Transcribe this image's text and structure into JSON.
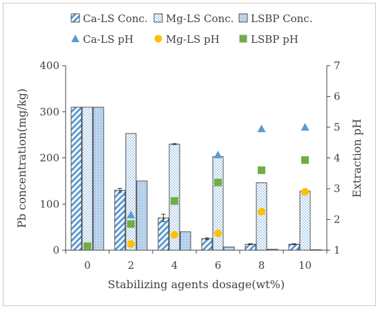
{
  "chart_data": {
    "type": "bar",
    "xlabel": "Stabilizing agents dosage(wt%)",
    "ylabel": "Pb concentration(mg/kg)",
    "y2label": "Extraction pH",
    "categories": [
      "0",
      "2",
      "4",
      "6",
      "8",
      "10"
    ],
    "ylim": [
      0,
      400
    ],
    "yticks": [
      "0",
      "100",
      "200",
      "300",
      "400"
    ],
    "y2lim": [
      1,
      7
    ],
    "y2ticks": [
      "1",
      "2",
      "3",
      "4",
      "5",
      "6",
      "7"
    ],
    "grid": false,
    "legend": "top",
    "bar_series": [
      {
        "name": "Ca-LS Conc.",
        "values": [
          310,
          130,
          70,
          25,
          13,
          13
        ],
        "errors": [
          0,
          4,
          8,
          2,
          1,
          1
        ],
        "pattern": "diagonal"
      },
      {
        "name": "Mg-LS Conc.",
        "values": [
          310,
          253,
          230,
          203,
          146,
          128
        ],
        "errors": [
          0,
          0,
          1,
          0,
          0,
          1
        ],
        "pattern": "dots"
      },
      {
        "name": "LSBP Conc.",
        "values": [
          310,
          150,
          40,
          7,
          2,
          1
        ],
        "errors": [
          0,
          0,
          0,
          0,
          0,
          0
        ],
        "pattern": "solid"
      }
    ],
    "point_series": [
      {
        "name": "Ca-LS pH",
        "marker": "triangle",
        "color": "#5B9BD5",
        "values": [
          null,
          2.15,
          null,
          4.1,
          4.95,
          5.0
        ]
      },
      {
        "name": "Mg-LS pH",
        "marker": "circle",
        "color": "#FFC000",
        "values": [
          null,
          1.2,
          1.5,
          1.55,
          2.25,
          2.9
        ]
      },
      {
        "name": "LSBP pH",
        "marker": "square",
        "color": "#70AD47",
        "values": [
          1.13,
          1.85,
          2.6,
          3.2,
          3.6,
          3.93
        ]
      }
    ]
  }
}
